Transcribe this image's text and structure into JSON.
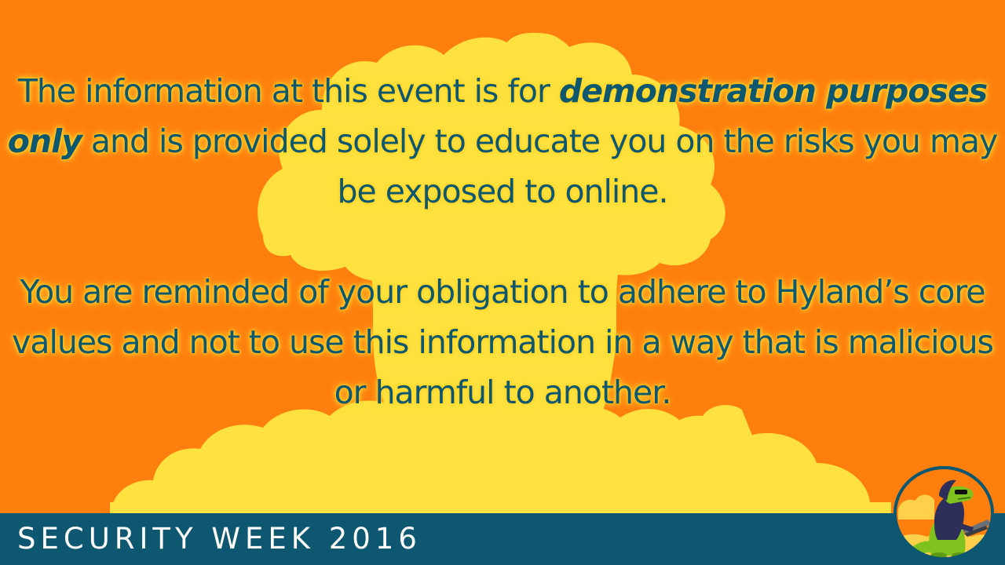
{
  "disclaimer": {
    "paragraph_1": {
      "text_before": "The information at this event is for ",
      "emphasis": "demonstration purposes only",
      "text_after": " and is provided solely to educate you on the risks you may be exposed to online."
    },
    "paragraph_2": "You are reminded of your obligation to adhere to Hyland’s core values and not to use this information in a way that is malicious or harmful to another."
  },
  "footer": {
    "title": "SECURITY WEEK 2016"
  },
  "icons": {
    "background": "mushroom-cloud-icon",
    "mascot": "dinosaur-hacker-mascot-icon"
  },
  "colors": {
    "background_orange": "#ff7f0e",
    "cloud_yellow": "#ffe13f",
    "text_teal": "#0d5870",
    "footer_teal": "#0d5870",
    "footer_text": "#ffffff"
  }
}
